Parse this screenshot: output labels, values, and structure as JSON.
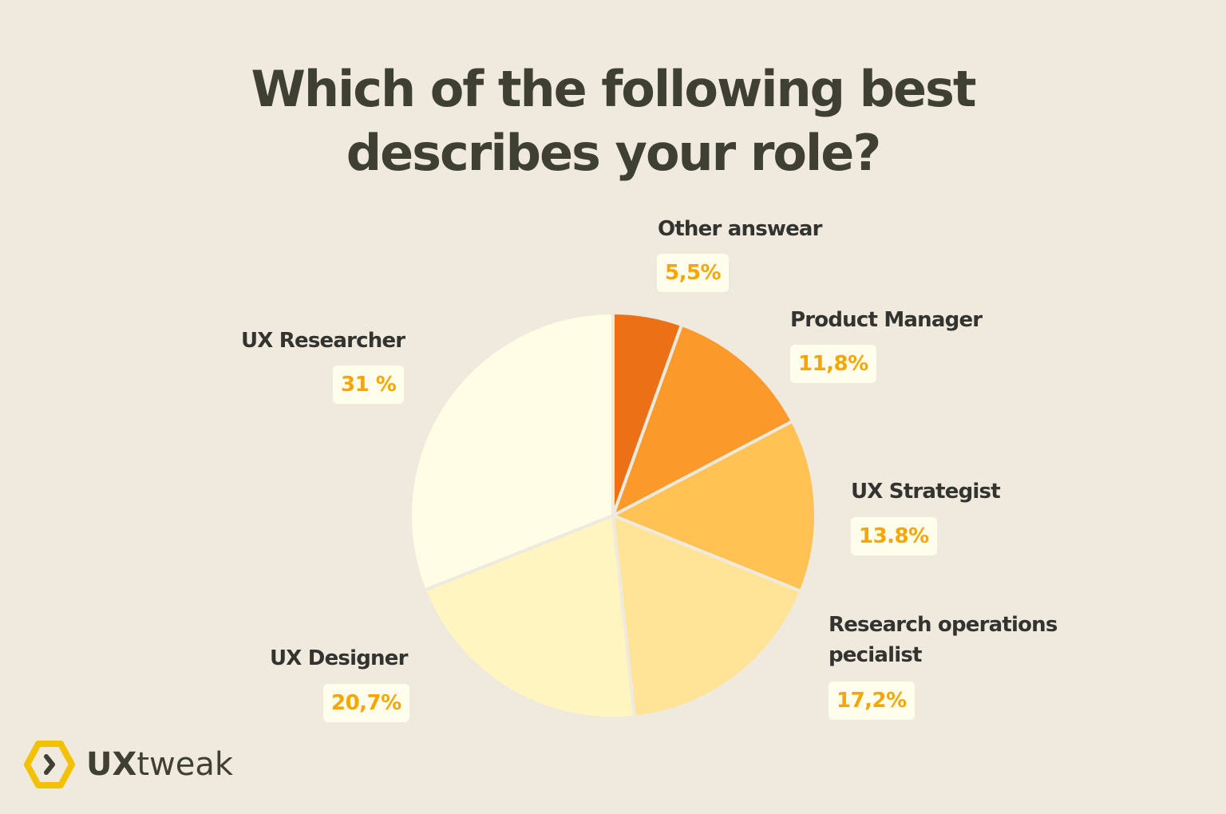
{
  "chart_data": {
    "type": "pie",
    "title": "Which of the following best describes your role?",
    "start": "top, clockwise",
    "slices": [
      {
        "label": "Other answear",
        "value": 5.5,
        "display": "5,5%",
        "color": "#EC7116"
      },
      {
        "label": "Product Manager",
        "value": 11.8,
        "display": "11,8%",
        "color": "#FB992B"
      },
      {
        "label": "UX Strategist",
        "value": 13.8,
        "display": "13.8%",
        "color": "#FFC253"
      },
      {
        "label": "Research operations pecialist",
        "value": 17.2,
        "display": "17,2%",
        "color": "#FFE396"
      },
      {
        "label": "UX Designer",
        "value": 20.7,
        "display": "20,7%",
        "color": "#FFF5C0"
      },
      {
        "label": "UX Researcher",
        "value": 31,
        "display": "31 %",
        "color": "#FFFDE5"
      }
    ]
  },
  "title_lines": [
    "Which of the following best",
    "describes your role?"
  ],
  "brand": {
    "logo_bold": "UX",
    "logo_light": "tweak",
    "accent": "#F2C200"
  }
}
